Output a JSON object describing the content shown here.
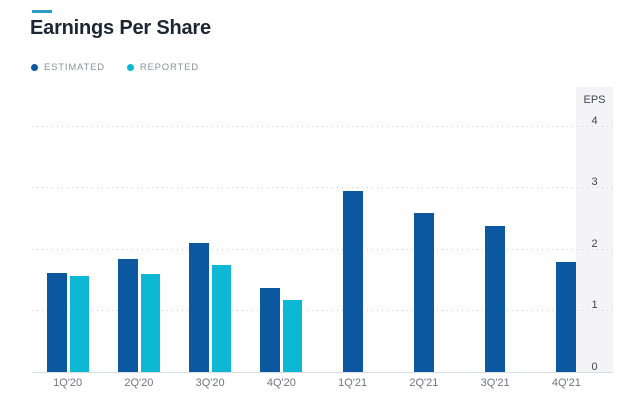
{
  "header": {
    "title": "Earnings Per Share",
    "accent_color": "#2a9bc6"
  },
  "legend": [
    {
      "label": "ESTIMATED",
      "color": "#0b57a0"
    },
    {
      "label": "REPORTED",
      "color": "#0db8d5"
    }
  ],
  "axis": {
    "title": "EPS",
    "side": "right",
    "ticks": [
      0,
      1,
      2,
      3,
      4
    ]
  },
  "chart_data": {
    "type": "bar",
    "title": "Earnings Per Share",
    "categories": [
      "1Q'20",
      "2Q'20",
      "3Q'20",
      "4Q'20",
      "1Q'21",
      "2Q'21",
      "3Q'21",
      "4Q'21"
    ],
    "series": [
      {
        "name": "ESTIMATED",
        "color": "#0b57a0",
        "values": [
          1.61,
          1.84,
          2.1,
          1.37,
          2.94,
          2.59,
          2.38,
          1.79
        ]
      },
      {
        "name": "REPORTED",
        "color": "#0db8d5",
        "values": [
          1.56,
          1.59,
          1.74,
          1.17,
          null,
          null,
          null,
          null
        ]
      }
    ],
    "xlabel": "",
    "ylabel": "EPS",
    "ylim": [
      0,
      4.63
    ],
    "yticks": [
      0,
      1,
      2,
      3,
      4
    ],
    "grid": "dotted-horizontal",
    "legend_position": "top-left",
    "axis_side": "right",
    "colors": {
      "estimated": "#0b57a0",
      "reported": "#0db8d5"
    }
  }
}
